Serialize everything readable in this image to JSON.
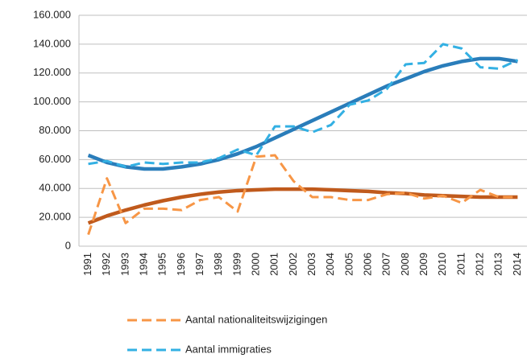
{
  "chart_data": {
    "type": "line",
    "categories": [
      "1991",
      "1992",
      "1993",
      "1994",
      "1995",
      "1996",
      "1997",
      "1998",
      "1999",
      "2000",
      "2001",
      "2002",
      "2003",
      "2004",
      "2005",
      "2006",
      "2007",
      "2008",
      "2009",
      "2010",
      "2011",
      "2012",
      "2013",
      "2014"
    ],
    "series": [
      {
        "name": "Aantal nationaliteitswijzigingen",
        "color": "#f79646",
        "dashed": true,
        "values": [
          8000,
          47000,
          16000,
          26000,
          26000,
          25000,
          32000,
          34000,
          24000,
          62000,
          63000,
          45000,
          34000,
          34000,
          32000,
          32000,
          36000,
          37000,
          33000,
          35000,
          30000,
          39000,
          34000,
          34000
        ]
      },
      {
        "name": "Aantal immigraties",
        "color": "#33b0e3",
        "dashed": true,
        "values": [
          57000,
          59000,
          55000,
          58000,
          57000,
          58000,
          58000,
          61000,
          67000,
          63000,
          83000,
          83000,
          79000,
          84000,
          98000,
          101000,
          109000,
          126000,
          127000,
          140000,
          137000,
          124000,
          123000,
          129000
        ]
      },
      {
        "color": "#c05a1c",
        "dashed": false,
        "values": [
          16000,
          21000,
          25000,
          28500,
          31500,
          34000,
          36000,
          37500,
          38500,
          39000,
          39500,
          39500,
          39500,
          39000,
          38500,
          38000,
          37000,
          36500,
          35500,
          35000,
          34500,
          34000,
          34000,
          34000
        ]
      },
      {
        "color": "#2a7dba",
        "dashed": false,
        "values": [
          63000,
          58000,
          55000,
          53500,
          53500,
          55000,
          57000,
          60000,
          64000,
          69000,
          75000,
          81000,
          87000,
          93000,
          99000,
          105000,
          111000,
          116000,
          121000,
          125000,
          128000,
          130000,
          130000,
          128000
        ]
      }
    ],
    "ylim": [
      0,
      160000
    ],
    "yticks": [
      0,
      {
        "value": 20000,
        "label": "20.000"
      },
      {
        "value": 40000,
        "label": "40.000"
      },
      {
        "value": 60000,
        "label": "60.000"
      },
      {
        "value": 80000,
        "label": "80.000"
      },
      {
        "value": 100000,
        "label": "100.000"
      },
      {
        "value": 120000,
        "label": "120.000"
      },
      {
        "value": 140000,
        "label": "140.000"
      },
      {
        "value": 160000,
        "label": "160.000"
      }
    ],
    "grid": true
  }
}
